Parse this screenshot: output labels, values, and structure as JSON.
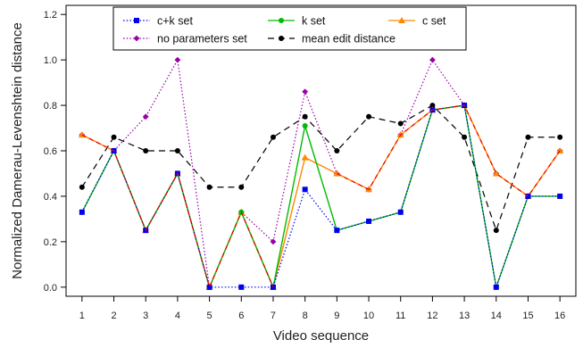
{
  "chart_data": {
    "type": "line",
    "xlabel": "Video sequence",
    "ylabel": "Normalized Damerau-Levenshtein distance",
    "x": [
      1,
      2,
      3,
      4,
      5,
      6,
      7,
      8,
      9,
      10,
      11,
      12,
      13,
      14,
      15,
      16
    ],
    "xlim": [
      0.5,
      16.5
    ],
    "ylim": [
      -0.04,
      1.24
    ],
    "yticks": [
      0.0,
      0.2,
      0.4,
      0.6,
      0.8,
      1.0,
      1.2
    ],
    "ytick_labels": [
      "0.0",
      "0.2",
      "0.4",
      "0.6",
      "0.8",
      "1.0",
      "1.2"
    ],
    "xtick_labels": [
      "1",
      "2",
      "3",
      "4",
      "5",
      "6",
      "7",
      "8",
      "9",
      "10",
      "11",
      "12",
      "13",
      "14",
      "15",
      "16"
    ],
    "grid": false,
    "legend_position": "top",
    "series": [
      {
        "name": "no parameters set",
        "color": "#9900aa",
        "dash": "dotted",
        "marker": "diamond",
        "values": [
          0.67,
          0.6,
          0.75,
          1.0,
          0.0,
          0.33,
          0.2,
          0.86,
          0.5,
          0.43,
          0.67,
          1.0,
          0.8,
          0.5,
          0.4,
          0.6
        ]
      },
      {
        "name": "mean edit distance",
        "color": "#000000",
        "dash": "dashed",
        "marker": "circle",
        "values": [
          0.44,
          0.66,
          0.6,
          0.6,
          0.44,
          0.44,
          0.66,
          0.75,
          0.6,
          0.75,
          0.72,
          0.8,
          0.66,
          0.25,
          0.66,
          0.66
        ]
      },
      {
        "name": "c set",
        "color": "#ff8800",
        "dash": "solid",
        "marker": "triangle",
        "values": [
          0.67,
          0.6,
          0.25,
          0.5,
          0.0,
          0.33,
          0.0,
          0.57,
          0.5,
          0.43,
          0.67,
          0.78,
          0.8,
          0.5,
          0.4,
          0.6
        ]
      },
      {
        "name": "k set",
        "color": "#00bb00",
        "dash": "solid",
        "marker": "circle",
        "values": [
          0.33,
          0.6,
          0.25,
          0.5,
          0.0,
          0.33,
          0.0,
          0.71,
          0.25,
          0.29,
          0.33,
          0.78,
          0.8,
          0.0,
          0.4,
          0.4
        ]
      },
      {
        "name": "c+k set",
        "color": "#0000ee",
        "dash": "dotted",
        "marker": "square",
        "values": [
          0.33,
          0.6,
          0.25,
          0.5,
          0.0,
          0.0,
          0.0,
          0.43,
          0.25,
          0.29,
          0.33,
          0.78,
          0.8,
          0.0,
          0.4,
          0.4
        ]
      }
    ],
    "overlay": {
      "name": "red dashed overlay",
      "color": "#ee0000",
      "dash": "dashed",
      "values": [
        0.67,
        0.6,
        0.25,
        0.5,
        0.0,
        0.33,
        0.0,
        null,
        0.5,
        0.43,
        0.67,
        0.78,
        0.8,
        0.5,
        0.4,
        0.6
      ]
    },
    "legend_order": [
      "c+k set",
      "k set",
      "c set",
      "no parameters set",
      "mean edit distance"
    ]
  }
}
